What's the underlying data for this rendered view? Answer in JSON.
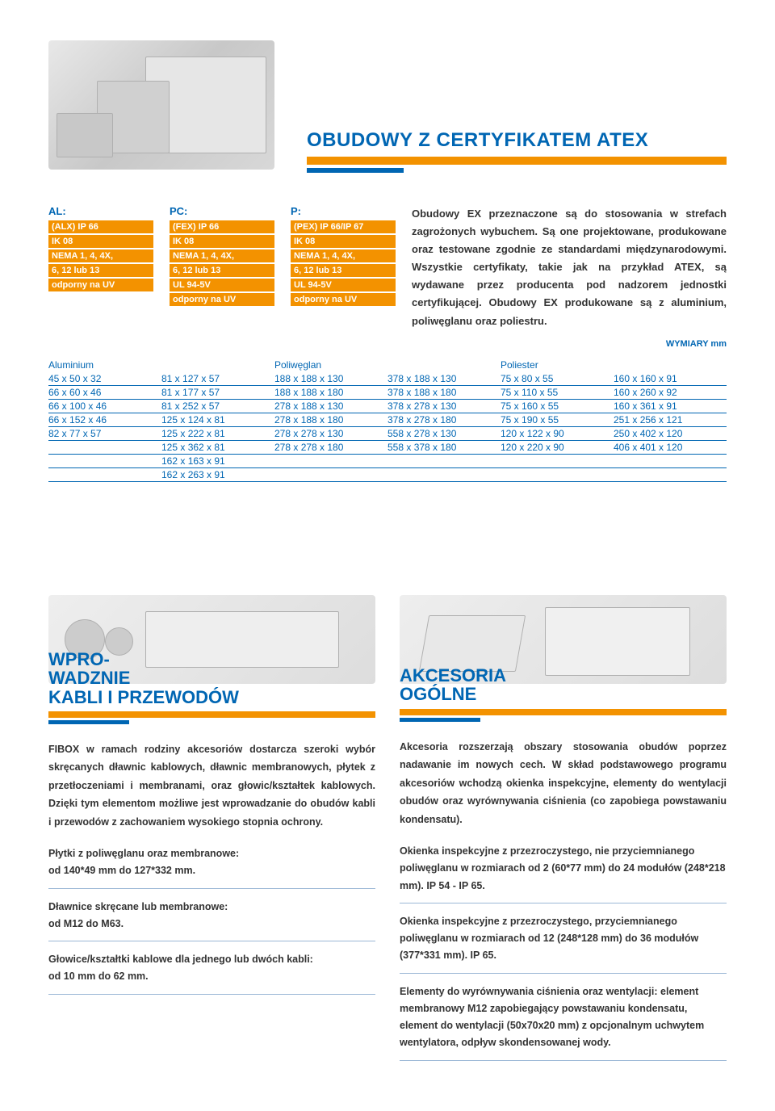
{
  "colors": {
    "brand_blue": "#0066b3",
    "brand_orange": "#f39200",
    "text": "#333333",
    "rule": "#9cb8d6"
  },
  "top": {
    "title": "OBUDOWY Z CERTYFIKATEM ATEX",
    "specs": [
      {
        "header": "AL:",
        "items": [
          "(ALX) IP 66",
          "IK 08",
          "NEMA 1, 4, 4X,",
          "6, 12 lub 13",
          "odporny na UV"
        ]
      },
      {
        "header": "PC:",
        "items": [
          "(FEX) IP 66",
          "IK 08",
          "NEMA 1, 4, 4X,",
          "6, 12 lub 13",
          "UL 94-5V",
          "odporny na UV"
        ]
      },
      {
        "header": "P:",
        "items": [
          "(PEX) IP 66/IP 67",
          "IK 08",
          "NEMA 1, 4, 4X,",
          "6, 12 lub 13",
          "UL 94-5V",
          "odporny na UV"
        ]
      }
    ],
    "description": "Obudowy EX przeznaczone są do stosowania w strefach zagrożonych wybuchem. Są one projektowane, produkowane oraz testowane zgodnie ze standardami międzynarodowymi. Wszystkie certyfikaty, takie jak na przykład ATEX, są wydawane przez producenta pod nadzorem jednostki certyfikującej. Obudowy EX produkowane są z aluminium, poliwęglanu oraz poliestru.",
    "wymiary": "WYMIARY mm"
  },
  "dims": {
    "headers": [
      "Aluminium",
      "Poliwęglan",
      "Poliester"
    ],
    "rows": [
      {
        "al1": "45 x 50 x 32",
        "al2": "81 x 127 x 57",
        "pw1": "188 x 188 x 130",
        "pw2": "378 x 188 x 130",
        "pe1": "75 x 80 x 55",
        "pe2": "160 x 160 x 91"
      },
      {
        "al1": "66 x 60 x 46",
        "al2": "81 x 177 x 57",
        "pw1": "188 x 188 x 180",
        "pw2": "378 x 188 x 180",
        "pe1": "75 x 110 x 55",
        "pe2": "160 x 260 x 92"
      },
      {
        "al1": "66 x 100 x 46",
        "al2": "81 x 252 x 57",
        "pw1": "278 x 188 x 130",
        "pw2": "378 x 278 x 130",
        "pe1": "75 x 160 x 55",
        "pe2": "160 x 361 x 91"
      },
      {
        "al1": "66 x 152 x 46",
        "al2": "125 x 124 x 81",
        "pw1": "278 x 188 x 180",
        "pw2": "378 x 278 x 180",
        "pe1": "75 x 190 x 55",
        "pe2": "251 x 256 x 121"
      },
      {
        "al1": "82 x 77 x 57",
        "al2": "125 x 222 x 81",
        "pw1": "278 x 278 x 130",
        "pw2": "558 x 278 x 130",
        "pe1": "120 x 122 x 90",
        "pe2": "250 x 402 x 120"
      },
      {
        "al1": "",
        "al2": "125 x 362 x 81",
        "pw1": "278 x 278 x 180",
        "pw2": "558 x 378 x 180",
        "pe1": "120 x 220 x 90",
        "pe2": "406 x 401 x 120"
      },
      {
        "al1": "",
        "al2": "162 x 163 x 91",
        "pw1": "",
        "pw2": "",
        "pe1": "",
        "pe2": ""
      },
      {
        "al1": "",
        "al2": "162 x 263 x 91",
        "pw1": "",
        "pw2": "",
        "pe1": "",
        "pe2": ""
      }
    ]
  },
  "left": {
    "title": "WPRO-\nWADZNIE\nKABLI I PRZEWODÓW",
    "body": "FIBOX w ramach rodziny akcesoriów dostarcza szeroki wybór skręcanych dławnic kablowych, dławnic membranowych, płytek z przetłoczeniami i membranami, oraz głowic/kształtek kablowych. Dzięki tym elementom możliwe jest wprowadzanie do obudów kabli i przewodów z zachowaniem wysokiego stopnia ochrony.",
    "items": [
      "Płytki z poliwęglanu oraz membranowe:\nod 140*49 mm do 127*332 mm.",
      "Dławnice skręcane lub membranowe:\nod M12 do M63.",
      "Głowice/kształtki kablowe dla jednego lub dwóch kabli:\nod 10 mm do 62 mm."
    ]
  },
  "right": {
    "title": "AKCESORIA\nOGÓLNE",
    "body": "Akcesoria rozszerzają obszary stosowania obudów poprzez nadawanie im nowych cech. W skład podstawowego programu akcesoriów wchodzą okienka inspekcyjne, elementy do wentylacji obudów oraz wyrównywania ciśnienia (co zapobiega powstawaniu kondensatu).",
    "items": [
      "Okienka inspekcyjne z przezroczystego, nie przyciemnianego poliwęglanu w rozmiarach od 2 (60*77 mm) do 24 modułów (248*218 mm). IP 54 - IP 65.",
      "Okienka inspekcyjne z przezroczystego, przyciemnianego poliwęglanu w rozmiarach od 12 (248*128 mm) do 36 modułów (377*331 mm). IP 65.",
      "Elementy do wyrównywania ciśnienia oraz wentylacji: element membranowy M12 zapobiegający powstawaniu kondensatu, element do wentylacji (50x70x20 mm) z opcjonalnym uchwytem wentylatora, odpływ skondensowanej wody."
    ]
  }
}
